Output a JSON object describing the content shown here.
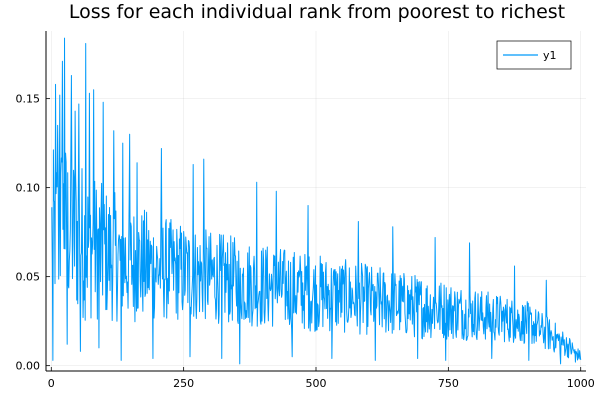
{
  "chart_data": {
    "type": "line",
    "title": "Loss for each individual rank from poorest to richest",
    "xlabel": "",
    "ylabel": "",
    "xlim": [
      -10,
      1010
    ],
    "ylim": [
      -0.003,
      0.188
    ],
    "x_ticks": [
      0,
      250,
      500,
      750,
      1000
    ],
    "x_tick_labels": [
      "0",
      "250",
      "500",
      "750",
      "1000"
    ],
    "y_ticks": [
      0.0,
      0.05,
      0.1,
      0.15
    ],
    "y_tick_labels": [
      "0.00",
      "0.05",
      "0.10",
      "0.15"
    ],
    "grid": true,
    "legend": {
      "placement": "top-right"
    },
    "series": [
      {
        "name": "y1",
        "color": "#009AFA",
        "x_start": 1,
        "x_end": 1000,
        "count": 1000,
        "trend": {
          "x": [
            1,
            20,
            60,
            100,
            150,
            200,
            300,
            400,
            500,
            600,
            700,
            800,
            900,
            950,
            980,
            1000
          ],
          "center": [
            0.075,
            0.08,
            0.07,
            0.063,
            0.058,
            0.055,
            0.05,
            0.045,
            0.041,
            0.037,
            0.033,
            0.029,
            0.024,
            0.016,
            0.01,
            0.005
          ],
          "spread": [
            0.045,
            0.05,
            0.045,
            0.038,
            0.034,
            0.03,
            0.026,
            0.024,
            0.022,
            0.02,
            0.018,
            0.015,
            0.012,
            0.009,
            0.006,
            0.003
          ]
        },
        "peaks": [
          [
            8,
            0.158
          ],
          [
            12,
            0.135
          ],
          [
            16,
            0.152
          ],
          [
            21,
            0.171
          ],
          [
            25,
            0.184
          ],
          [
            38,
            0.163
          ],
          [
            45,
            0.143
          ],
          [
            52,
            0.147
          ],
          [
            65,
            0.181
          ],
          [
            72,
            0.153
          ],
          [
            80,
            0.155
          ],
          [
            98,
            0.148
          ],
          [
            118,
            0.132
          ],
          [
            135,
            0.125
          ],
          [
            148,
            0.13
          ],
          [
            162,
            0.114
          ],
          [
            208,
            0.122
          ],
          [
            268,
            0.113
          ],
          [
            288,
            0.116
          ],
          [
            388,
            0.103
          ],
          [
            425,
            0.098
          ],
          [
            485,
            0.09
          ],
          [
            580,
            0.081
          ],
          [
            645,
            0.078
          ],
          [
            725,
            0.072
          ],
          [
            790,
            0.069
          ],
          [
            875,
            0.056
          ],
          [
            935,
            0.048
          ]
        ],
        "troughs": [
          [
            3,
            0.003
          ],
          [
            30,
            0.012
          ],
          [
            55,
            0.008
          ],
          [
            90,
            0.01
          ],
          [
            132,
            0.003
          ],
          [
            192,
            0.004
          ],
          [
            262,
            0.005
          ],
          [
            322,
            0.004
          ],
          [
            356,
            0.001
          ],
          [
            455,
            0.005
          ],
          [
            530,
            0.004
          ],
          [
            612,
            0.003
          ],
          [
            692,
            0.004
          ],
          [
            745,
            0.003
          ],
          [
            832,
            0.004
          ],
          [
            902,
            0.003
          ],
          [
            962,
            0.001
          ],
          [
            990,
            0.002
          ]
        ]
      }
    ]
  }
}
